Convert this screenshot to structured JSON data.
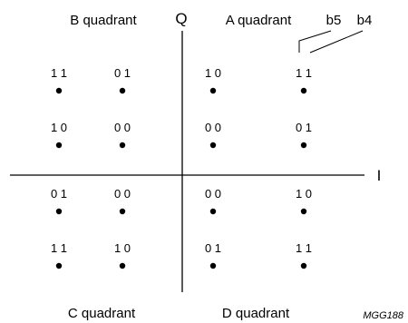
{
  "diagram": {
    "axis_labels": {
      "q": "Q",
      "i": "I"
    },
    "quadrant_labels": {
      "a": "A quadrant",
      "b": "B quadrant",
      "c": "C quadrant",
      "d": "D quadrant"
    },
    "bit_labels": {
      "b5": "b5",
      "b4": "b4"
    },
    "figure_id": "MGG188",
    "points": [
      {
        "quadrant": "B",
        "row": 0,
        "col": 0,
        "bits": "1 1"
      },
      {
        "quadrant": "B",
        "row": 0,
        "col": 1,
        "bits": "0 1"
      },
      {
        "quadrant": "A",
        "row": 0,
        "col": 0,
        "bits": "1 0"
      },
      {
        "quadrant": "A",
        "row": 0,
        "col": 1,
        "bits": "1 1"
      },
      {
        "quadrant": "B",
        "row": 1,
        "col": 0,
        "bits": "1 0"
      },
      {
        "quadrant": "B",
        "row": 1,
        "col": 1,
        "bits": "0 0"
      },
      {
        "quadrant": "A",
        "row": 1,
        "col": 0,
        "bits": "0 0"
      },
      {
        "quadrant": "A",
        "row": 1,
        "col": 1,
        "bits": "0 1"
      },
      {
        "quadrant": "C",
        "row": 0,
        "col": 0,
        "bits": "0 1"
      },
      {
        "quadrant": "C",
        "row": 0,
        "col": 1,
        "bits": "0 0"
      },
      {
        "quadrant": "D",
        "row": 0,
        "col": 0,
        "bits": "0 0"
      },
      {
        "quadrant": "D",
        "row": 0,
        "col": 1,
        "bits": "1 0"
      },
      {
        "quadrant": "C",
        "row": 1,
        "col": 0,
        "bits": "1 1"
      },
      {
        "quadrant": "C",
        "row": 1,
        "col": 1,
        "bits": "1 0"
      },
      {
        "quadrant": "D",
        "row": 1,
        "col": 0,
        "bits": "0 1"
      },
      {
        "quadrant": "D",
        "row": 1,
        "col": 1,
        "bits": "1 1"
      }
    ]
  }
}
